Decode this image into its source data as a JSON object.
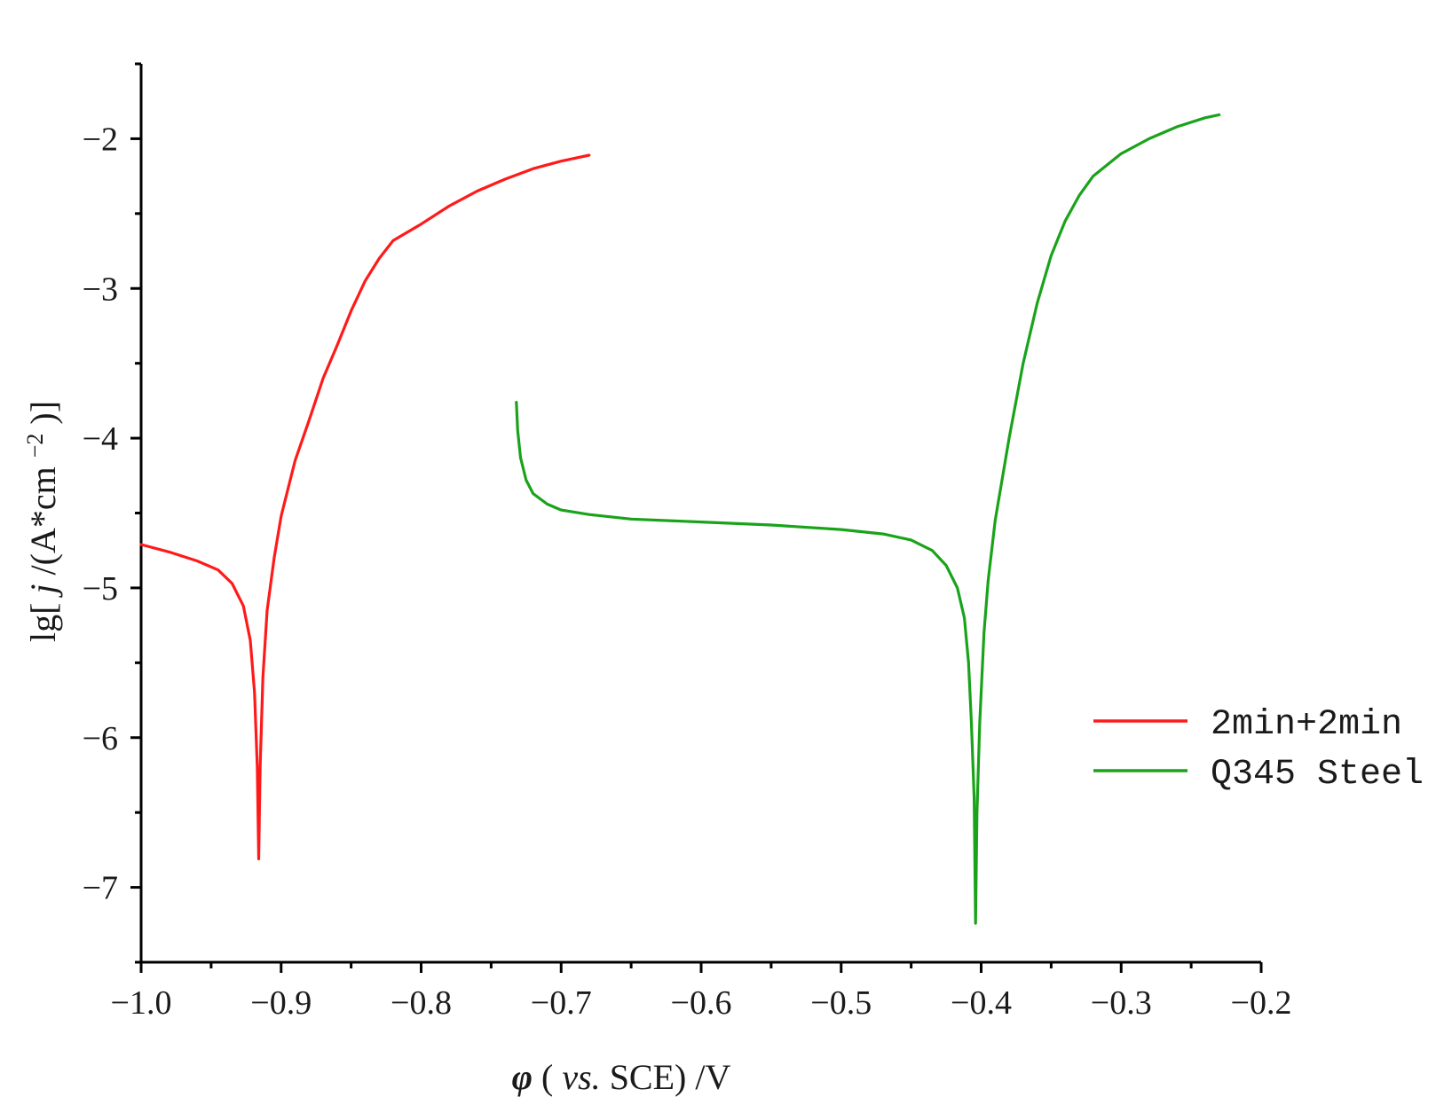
{
  "chart_data": {
    "type": "line",
    "xlabel": {
      "symbol": "φ",
      "paren_open": "(",
      "italic": "vs.",
      "rest": " SCE) /V"
    },
    "ylabel": {
      "prefix": "lg[",
      "italic": "j",
      "middle": "/(A*cm",
      "sup": "−2",
      "suffix": ")]"
    },
    "xlim": [
      -1.0,
      -0.2
    ],
    "ylim": [
      -7.5,
      -1.5
    ],
    "x_ticks": [
      -1.0,
      -0.9,
      -0.8,
      -0.7,
      -0.6,
      -0.5,
      -0.4,
      -0.3,
      -0.2
    ],
    "x_tick_labels": [
      "−1.0",
      "−0.9",
      "−0.8",
      "−0.7",
      "−0.6",
      "−0.5",
      "−0.4",
      "−0.3",
      "−0.2"
    ],
    "y_ticks": [
      -7,
      -6,
      -5,
      -4,
      -3,
      -2
    ],
    "y_tick_labels": [
      "−7",
      "−6",
      "−5",
      "−4",
      "−3",
      "−2"
    ],
    "grid": false,
    "legend_position": "right",
    "series": [
      {
        "name": "2min+2min",
        "color": "#ff1a1a",
        "points": [
          [
            -1.0,
            -4.71
          ],
          [
            -0.98,
            -4.76
          ],
          [
            -0.96,
            -4.82
          ],
          [
            -0.945,
            -4.88
          ],
          [
            -0.935,
            -4.97
          ],
          [
            -0.927,
            -5.12
          ],
          [
            -0.922,
            -5.35
          ],
          [
            -0.919,
            -5.7
          ],
          [
            -0.917,
            -6.2
          ],
          [
            -0.916,
            -6.81
          ],
          [
            -0.915,
            -6.2
          ],
          [
            -0.913,
            -5.6
          ],
          [
            -0.91,
            -5.15
          ],
          [
            -0.905,
            -4.8
          ],
          [
            -0.9,
            -4.52
          ],
          [
            -0.89,
            -4.15
          ],
          [
            -0.88,
            -3.88
          ],
          [
            -0.87,
            -3.6
          ],
          [
            -0.86,
            -3.38
          ],
          [
            -0.85,
            -3.15
          ],
          [
            -0.84,
            -2.95
          ],
          [
            -0.83,
            -2.8
          ],
          [
            -0.82,
            -2.68
          ],
          [
            -0.8,
            -2.57
          ],
          [
            -0.78,
            -2.45
          ],
          [
            -0.76,
            -2.35
          ],
          [
            -0.74,
            -2.27
          ],
          [
            -0.72,
            -2.2
          ],
          [
            -0.7,
            -2.15
          ],
          [
            -0.68,
            -2.11
          ]
        ]
      },
      {
        "name": "Q345 Steel",
        "color": "#1aa31a",
        "points": [
          [
            -0.732,
            -3.76
          ],
          [
            -0.731,
            -3.95
          ],
          [
            -0.729,
            -4.13
          ],
          [
            -0.725,
            -4.28
          ],
          [
            -0.72,
            -4.37
          ],
          [
            -0.71,
            -4.44
          ],
          [
            -0.7,
            -4.48
          ],
          [
            -0.68,
            -4.51
          ],
          [
            -0.65,
            -4.54
          ],
          [
            -0.6,
            -4.56
          ],
          [
            -0.55,
            -4.58
          ],
          [
            -0.5,
            -4.61
          ],
          [
            -0.47,
            -4.64
          ],
          [
            -0.45,
            -4.68
          ],
          [
            -0.435,
            -4.75
          ],
          [
            -0.425,
            -4.85
          ],
          [
            -0.417,
            -5.0
          ],
          [
            -0.412,
            -5.2
          ],
          [
            -0.409,
            -5.5
          ],
          [
            -0.407,
            -5.9
          ],
          [
            -0.405,
            -6.4
          ],
          [
            -0.404,
            -7.24
          ],
          [
            -0.403,
            -6.5
          ],
          [
            -0.401,
            -5.9
          ],
          [
            -0.398,
            -5.3
          ],
          [
            -0.395,
            -4.95
          ],
          [
            -0.39,
            -4.55
          ],
          [
            -0.38,
            -4.0
          ],
          [
            -0.37,
            -3.5
          ],
          [
            -0.36,
            -3.1
          ],
          [
            -0.35,
            -2.78
          ],
          [
            -0.34,
            -2.55
          ],
          [
            -0.33,
            -2.38
          ],
          [
            -0.32,
            -2.25
          ],
          [
            -0.3,
            -2.1
          ],
          [
            -0.28,
            -2.0
          ],
          [
            -0.26,
            -1.92
          ],
          [
            -0.24,
            -1.86
          ],
          [
            -0.23,
            -1.84
          ]
        ]
      }
    ]
  }
}
